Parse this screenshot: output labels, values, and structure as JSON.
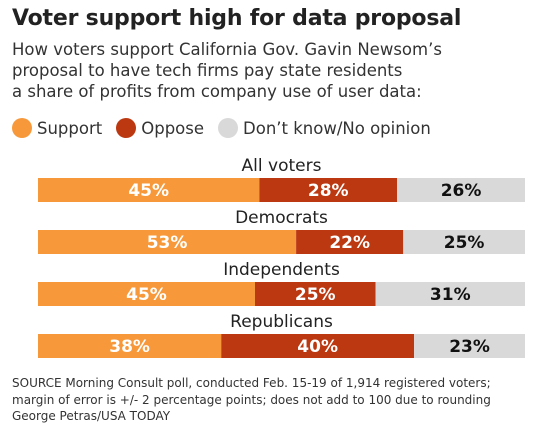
{
  "title": "Voter support high for data proposal",
  "subtitle_lines": [
    "How voters support California Gov. Gavin Newsom’s",
    "proposal to have tech firms pay state residents",
    "a share of profits from company use of user data:"
  ],
  "legend": [
    {
      "label": "Support",
      "color": "#f7993a"
    },
    {
      "label": "Oppose",
      "color": "#bb3811"
    },
    {
      "label": "Don’t know/No opinion",
      "color": "#d9d9d9"
    }
  ],
  "chart_data": {
    "type": "bar",
    "orientation": "horizontal",
    "stacked": true,
    "categories": [
      "All voters",
      "Democrats",
      "Independents",
      "Republicans"
    ],
    "series": [
      {
        "name": "Support",
        "color": "#f7993a",
        "values": [
          45,
          53,
          45,
          38
        ]
      },
      {
        "name": "Oppose",
        "color": "#bb3811",
        "values": [
          28,
          22,
          25,
          40
        ]
      },
      {
        "name": "Don’t know/No opinion",
        "color": "#d9d9d9",
        "values": [
          26,
          25,
          31,
          23
        ]
      }
    ],
    "value_suffix": "%",
    "label_colors": [
      "#ffffff",
      "#ffffff",
      "#111111"
    ]
  },
  "footer_lines": [
    "SOURCE Morning Consult poll, conducted Feb. 15-19 of 1,914 registered voters;",
    "margin of error is +/- 2 percentage points; does not add to 100 due to rounding",
    "George Petras/USA TODAY"
  ]
}
